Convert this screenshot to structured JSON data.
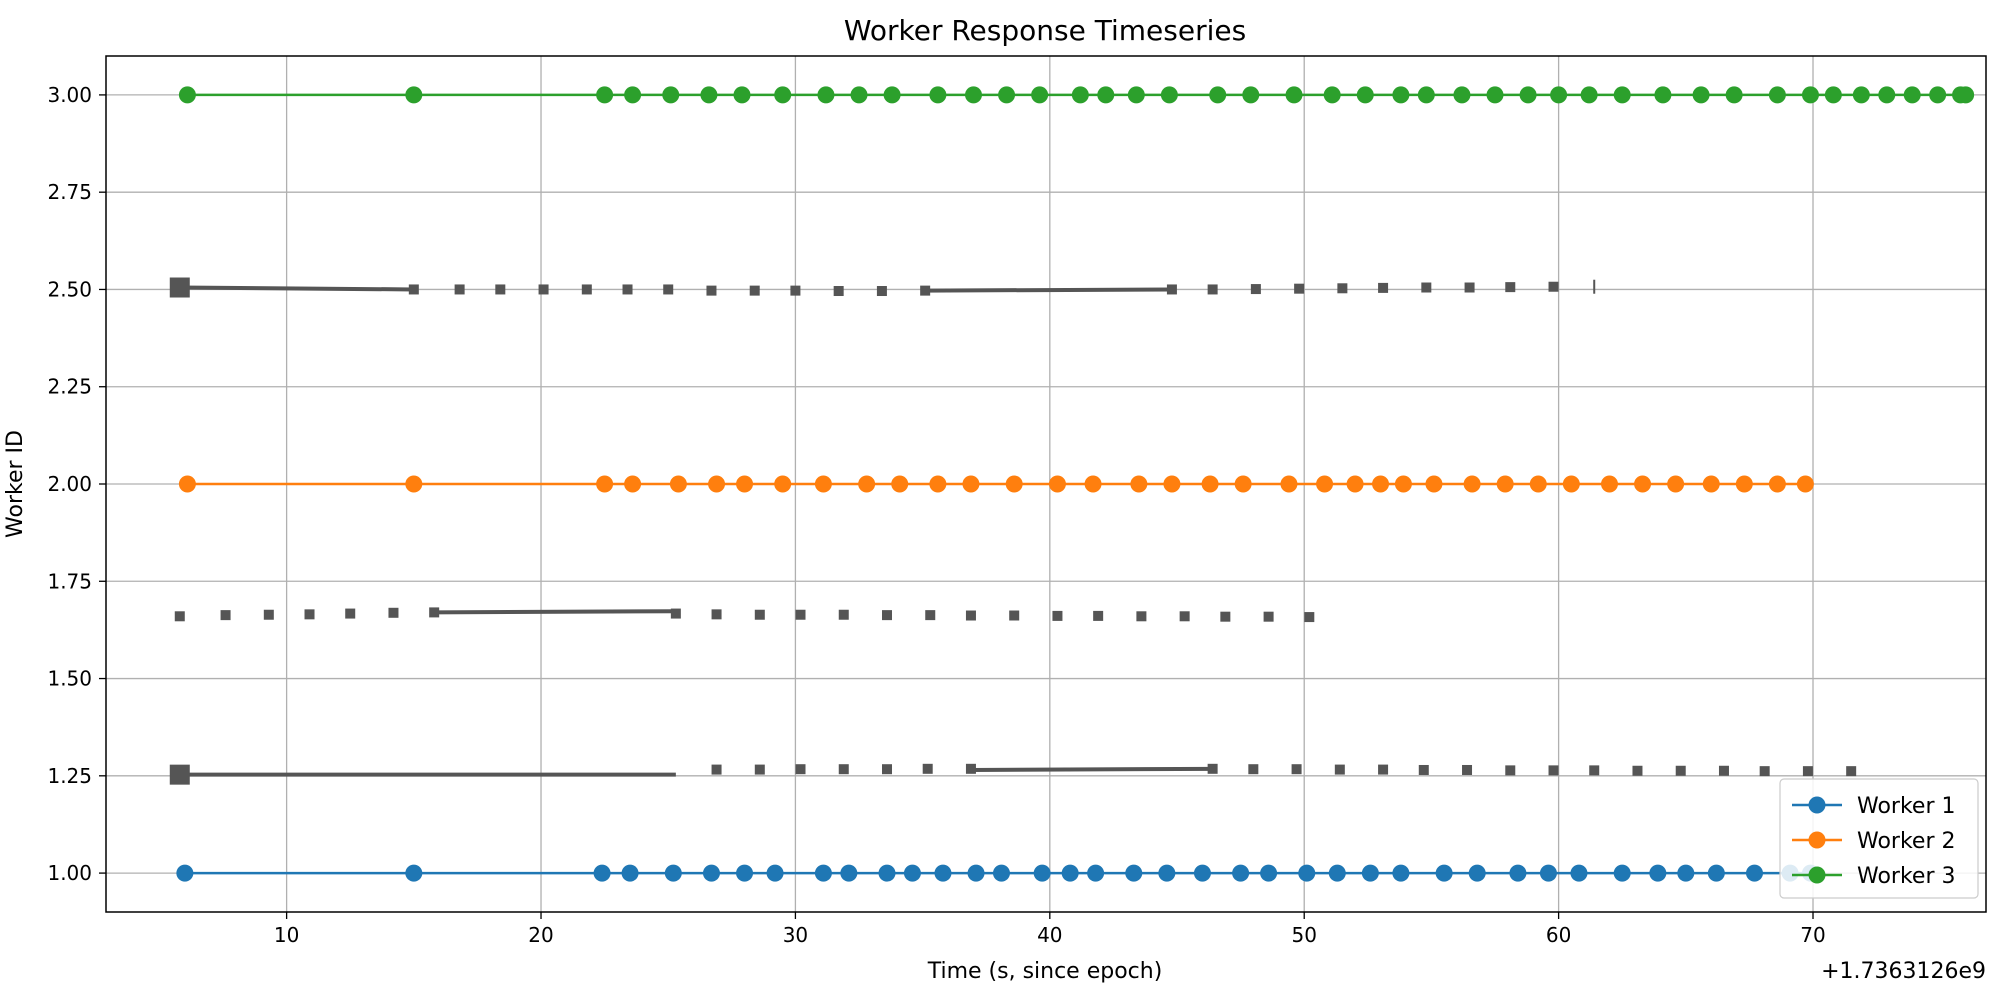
{
  "chart_data": {
    "type": "line",
    "title": "Worker Response Timeseries",
    "xlabel": "Time (s, since epoch)",
    "ylabel": "Worker ID",
    "x_offset_label": "+1.7363126e9",
    "xlim": [
      2.9,
      76.8
    ],
    "ylim": [
      0.9,
      3.1
    ],
    "xticks": [
      10,
      20,
      30,
      40,
      50,
      60,
      70
    ],
    "yticks": [
      1.0,
      1.25,
      1.5,
      1.75,
      2.0,
      2.25,
      2.5,
      2.75,
      3.0
    ],
    "grid": true,
    "legend_position": "lower right",
    "series": [
      {
        "name": "Worker 1",
        "color": "#1f77b4",
        "y": 1.0,
        "x": [
          6.0,
          15.0,
          22.4,
          23.5,
          25.2,
          26.7,
          28.0,
          29.2,
          31.1,
          32.1,
          33.6,
          34.6,
          35.8,
          37.1,
          38.1,
          39.7,
          40.8,
          41.8,
          43.3,
          44.6,
          46.0,
          47.5,
          48.6,
          50.1,
          51.3,
          52.6,
          53.8,
          55.5,
          56.8,
          58.4,
          59.6,
          60.8,
          62.5,
          63.9,
          65.0,
          66.2,
          67.7,
          69.1,
          69.9
        ]
      },
      {
        "name": "Worker 2",
        "color": "#ff7f0e",
        "y": 2.0,
        "x": [
          6.1,
          15.0,
          22.5,
          23.6,
          25.4,
          26.9,
          28.0,
          29.5,
          31.1,
          32.8,
          34.1,
          35.6,
          36.9,
          38.6,
          40.3,
          41.7,
          43.5,
          44.8,
          46.3,
          47.6,
          49.4,
          50.8,
          52.0,
          53.0,
          53.9,
          55.1,
          56.6,
          57.9,
          59.2,
          60.5,
          62.0,
          63.3,
          64.6,
          66.0,
          67.3,
          68.6,
          69.7
        ]
      },
      {
        "name": "Worker 3",
        "color": "#2ca02c",
        "y": 3.0,
        "x": [
          6.1,
          15.0,
          22.5,
          23.6,
          25.1,
          26.6,
          27.9,
          29.5,
          31.2,
          32.5,
          33.8,
          35.6,
          37.0,
          38.3,
          39.6,
          41.2,
          42.2,
          43.4,
          44.7,
          46.6,
          47.9,
          49.6,
          51.1,
          52.4,
          53.8,
          54.8,
          56.2,
          57.5,
          58.8,
          60.0,
          61.2,
          62.5,
          64.1,
          65.6,
          66.9,
          68.6,
          69.9,
          70.8,
          71.9,
          72.9,
          73.9,
          74.9,
          75.8,
          76.0
        ]
      }
    ],
    "unlabeled_markers": {
      "color": "#555555",
      "tracks": [
        {
          "y_start": 2.505,
          "y_end": 2.505,
          "big_x": [
            5.8
          ],
          "segments": [
            [
              5.8,
              2.505,
              15.0,
              2.5
            ],
            [
              35.1,
              2.497,
              44.8,
              2.5
            ]
          ],
          "x": [
            15.0,
            16.8,
            18.4,
            20.1,
            21.8,
            23.4,
            25.0,
            26.7,
            28.4,
            30.0,
            31.7,
            33.4,
            35.1,
            44.8,
            46.4,
            48.1,
            49.8,
            51.5,
            53.1,
            54.8,
            56.5,
            58.1,
            59.8
          ],
          "y": [
            2.5,
            2.5,
            2.5,
            2.5,
            2.5,
            2.5,
            2.5,
            2.497,
            2.497,
            2.497,
            2.496,
            2.496,
            2.497,
            2.5,
            2.5,
            2.501,
            2.502,
            2.503,
            2.504,
            2.505,
            2.505,
            2.506,
            2.507
          ],
          "end_tick_x": 61.4
        },
        {
          "big_x": [],
          "segments": [
            [
              15.8,
              1.67,
              25.3,
              1.673
            ]
          ],
          "x": [
            5.8,
            7.6,
            9.3,
            10.9,
            12.5,
            14.2,
            15.8,
            25.3,
            26.9,
            28.6,
            30.2,
            31.9,
            33.6,
            35.3,
            36.9,
            38.6,
            40.3,
            41.9,
            43.6,
            45.3,
            46.9,
            48.6,
            50.2
          ],
          "y": [
            1.66,
            1.663,
            1.664,
            1.665,
            1.667,
            1.669,
            1.67,
            1.667,
            1.665,
            1.664,
            1.664,
            1.664,
            1.663,
            1.663,
            1.662,
            1.662,
            1.661,
            1.661,
            1.66,
            1.66,
            1.659,
            1.659,
            1.658
          ],
          "end_tick_x": null
        },
        {
          "big_x": [
            5.8
          ],
          "segments": [
            [
              5.8,
              1.253,
              25.3,
              1.253
            ],
            [
              36.9,
              1.265,
              46.4,
              1.268
            ]
          ],
          "x": [
            26.9,
            28.6,
            30.2,
            31.9,
            33.6,
            35.2,
            36.9,
            46.4,
            48.0,
            49.7,
            51.4,
            53.1,
            54.7,
            56.4,
            58.1,
            59.8,
            61.4,
            63.1,
            64.8,
            66.5,
            68.1,
            69.8,
            71.5
          ],
          "y": [
            1.266,
            1.266,
            1.267,
            1.267,
            1.267,
            1.268,
            1.268,
            1.268,
            1.267,
            1.267,
            1.266,
            1.266,
            1.265,
            1.265,
            1.264,
            1.264,
            1.264,
            1.263,
            1.263,
            1.263,
            1.262,
            1.262,
            1.262
          ],
          "end_tick_x": null
        }
      ]
    }
  }
}
